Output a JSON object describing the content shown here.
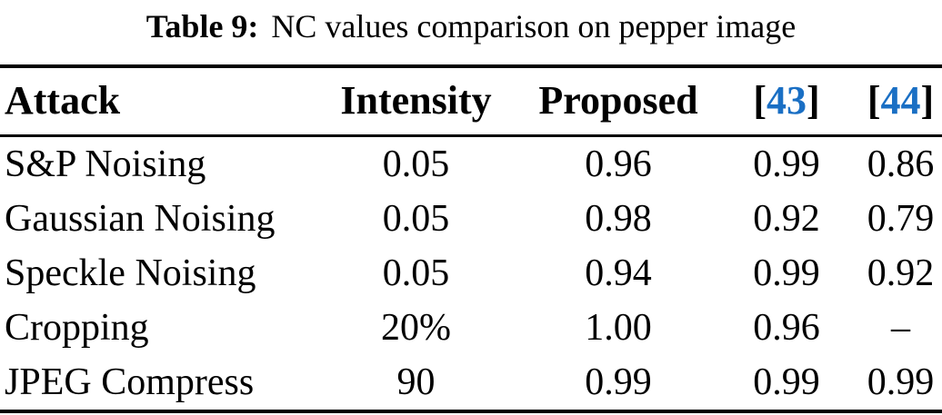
{
  "caption": {
    "label": "Table 9:",
    "text": "NC values comparison on pepper image"
  },
  "colors": {
    "text": "#000000",
    "rule": "#000000",
    "citation_link": "#1a6fc4"
  },
  "table": {
    "columns": {
      "attack": "Attack",
      "intensity": "Intensity",
      "proposed": "Proposed",
      "ref43": {
        "open": "[",
        "num": "43",
        "close": "]"
      },
      "ref44": {
        "open": "[",
        "num": "44",
        "close": "]"
      }
    },
    "rows": [
      {
        "attack": "S&P Noising",
        "intensity": "0.05",
        "proposed": "0.96",
        "ref43": "0.99",
        "ref44": "0.86"
      },
      {
        "attack": "Gaussian Noising",
        "intensity": "0.05",
        "proposed": "0.98",
        "ref43": "0.92",
        "ref44": "0.79"
      },
      {
        "attack": "Speckle Noising",
        "intensity": "0.05",
        "proposed": "0.94",
        "ref43": "0.99",
        "ref44": "0.92"
      },
      {
        "attack": "Cropping",
        "intensity": "20%",
        "proposed": "1.00",
        "ref43": "0.96",
        "ref44": "–"
      },
      {
        "attack": "JPEG Compress",
        "intensity": "90",
        "proposed": "0.99",
        "ref43": "0.99",
        "ref44": "0.99"
      }
    ]
  }
}
